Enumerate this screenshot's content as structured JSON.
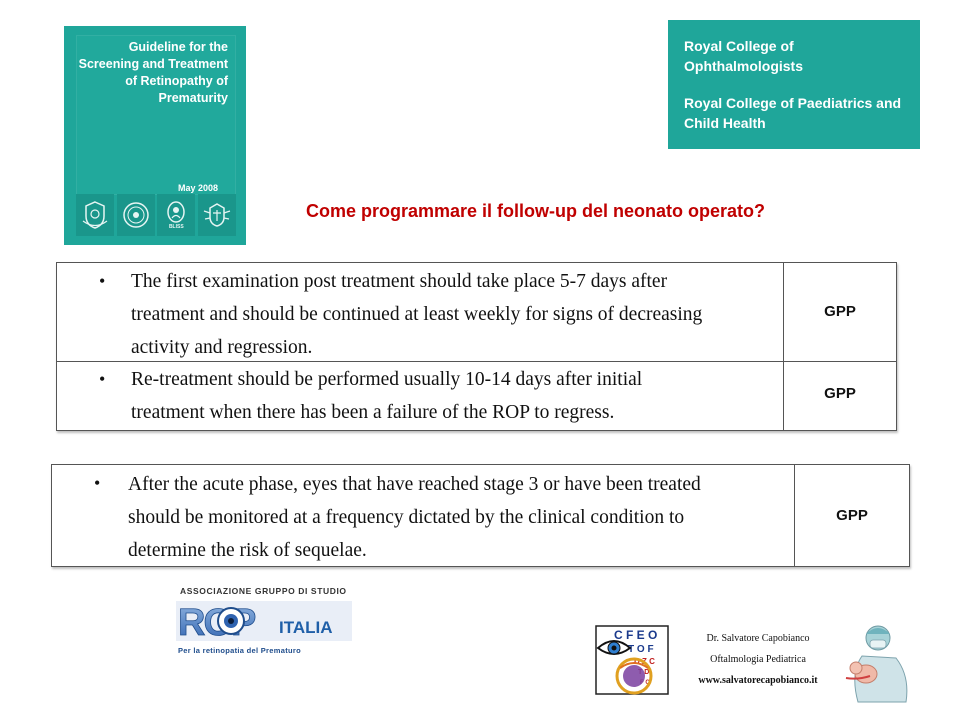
{
  "cover": {
    "title": "Guideline for the Screening and Treatment of Retinopathy of Prematurity",
    "date": "May 2008",
    "logos": [
      "crest-icon",
      "seal-icon",
      "bliss-logo-icon",
      "college-crest-icon"
    ],
    "bliss_label": "BLISS"
  },
  "colleges": {
    "line1": "Royal College of Ophthalmologists",
    "line2": "Royal College of Paediatrics and Child Health"
  },
  "question": "Come programmare il follow-up del neonato operato?",
  "table1": {
    "rows": [
      {
        "bullet": "•",
        "lines": [
          "The first examination post treatment should take place 5-7 days after",
          "treatment and should be continued at least weekly for signs of decreasing",
          "activity and regression."
        ],
        "grade": "GPP"
      },
      {
        "bullet": "•",
        "lines": [
          "Re-treatment should be performed usually 10-14 days after initial",
          "treatment when there has been a failure of the ROP to regress."
        ],
        "grade": "GPP"
      }
    ]
  },
  "table2": {
    "rows": [
      {
        "bullet": "•",
        "lines": [
          "After the acute phase, eyes that have reached stage 3 or have been treated",
          "should be monitored at a frequency dictated by the clinical condition to",
          "determine the risk of sequelae."
        ],
        "grade": "GPP"
      }
    ]
  },
  "rop_logo": {
    "association": "ASSOCIAZIONE GRUPPO DI STUDIO",
    "letters": "ROP",
    "country": "ITALIA",
    "tagline": "Per la retinopatia del Prematuro"
  },
  "doctor": {
    "name": "Dr. Salvatore Capobianco",
    "specialty": "Oftalmologia Pediatrica",
    "website": "www.salvatorecapobianco.it"
  },
  "eye_chart_letters": [
    "C F E O",
    "T O F",
    "D Z C",
    "T D",
    "F C"
  ],
  "colors": {
    "teal": "#1fa69a",
    "question_red": "#c00000",
    "rop_blue": "#1f5fa8"
  }
}
